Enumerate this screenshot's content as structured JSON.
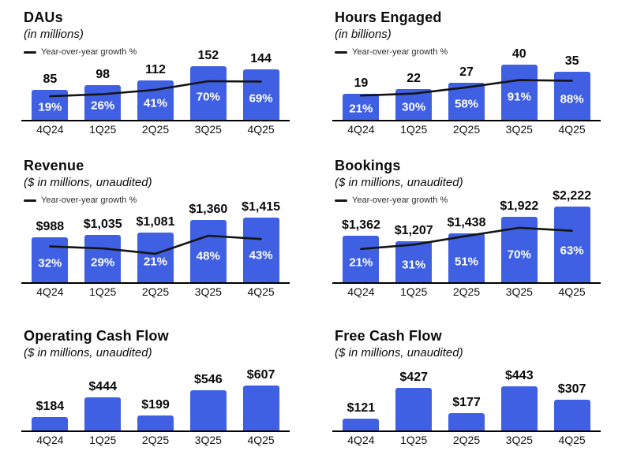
{
  "page": {
    "background": "#ffffff"
  },
  "colors": {
    "bar": "#3F60E2",
    "growth_line": "#151515",
    "growth_label_text": "#ffffff",
    "text": "#0c0c0c"
  },
  "chart_data": [
    {
      "type": "bar",
      "title": "DAUs",
      "subtitle": "(in millions)",
      "legend": "Year-over-year growth %",
      "categories": [
        "4Q24",
        "1Q25",
        "2Q25",
        "3Q25",
        "4Q25"
      ],
      "values": [
        85,
        98,
        112,
        152,
        144
      ],
      "value_labels": [
        "85",
        "98",
        "112",
        "152",
        "144"
      ],
      "series": [
        {
          "name": "Year-over-year growth %",
          "type": "line",
          "values_pct": [
            19,
            26,
            41,
            70,
            69
          ],
          "labels": [
            "19%",
            "26%",
            "41%",
            "70%",
            "69%"
          ]
        }
      ]
    },
    {
      "type": "bar",
      "title": "Hours Engaged",
      "subtitle": "(in billions)",
      "legend": "Year-over-year growth %",
      "categories": [
        "4Q24",
        "1Q25",
        "2Q25",
        "3Q25",
        "4Q25"
      ],
      "values": [
        19,
        22,
        27,
        40,
        35
      ],
      "value_labels": [
        "19",
        "22",
        "27",
        "40",
        "35"
      ],
      "series": [
        {
          "name": "Year-over-year growth %",
          "type": "line",
          "values_pct": [
            21,
            30,
            58,
            91,
            88
          ],
          "labels": [
            "21%",
            "30%",
            "58%",
            "91%",
            "88%"
          ]
        }
      ]
    },
    {
      "type": "bar",
      "title": "Revenue",
      "subtitle": "($ in millions, unaudited)",
      "legend": "Year-over-year growth %",
      "categories": [
        "4Q24",
        "1Q25",
        "2Q25",
        "3Q25",
        "4Q25"
      ],
      "values": [
        988,
        1035,
        1081,
        1360,
        1415
      ],
      "value_labels": [
        "$988",
        "$1,035",
        "$1,081",
        "$1,360",
        "$1,415"
      ],
      "series": [
        {
          "name": "Year-over-year growth %",
          "type": "line",
          "values_pct": [
            32,
            29,
            21,
            48,
            43
          ],
          "labels": [
            "32%",
            "29%",
            "21%",
            "48%",
            "43%"
          ]
        }
      ]
    },
    {
      "type": "bar",
      "title": "Bookings",
      "subtitle": "($ in millions, unaudited)",
      "legend": "Year-over-year growth %",
      "categories": [
        "4Q24",
        "1Q25",
        "2Q25",
        "3Q25",
        "4Q25"
      ],
      "values": [
        1362,
        1207,
        1438,
        1922,
        2222
      ],
      "value_labels": [
        "$1,362",
        "$1,207",
        "$1,438",
        "$1,922",
        "$2,222"
      ],
      "series": [
        {
          "name": "Year-over-year growth %",
          "type": "line",
          "values_pct": [
            21,
            31,
            51,
            70,
            63
          ],
          "labels": [
            "21%",
            "31%",
            "51%",
            "70%",
            "63%"
          ]
        }
      ]
    },
    {
      "type": "bar",
      "title": "Operating Cash Flow",
      "subtitle": "($ in millions, unaudited)",
      "legend": null,
      "categories": [
        "4Q24",
        "1Q25",
        "2Q25",
        "3Q25",
        "4Q25"
      ],
      "values": [
        184,
        444,
        199,
        546,
        607
      ],
      "value_labels": [
        "$184",
        "$444",
        "$199",
        "$546",
        "$607"
      ],
      "series": []
    },
    {
      "type": "bar",
      "title": "Free Cash Flow",
      "subtitle": "($ in millions, unaudited)",
      "legend": null,
      "categories": [
        "4Q24",
        "1Q25",
        "2Q25",
        "3Q25",
        "4Q25"
      ],
      "values": [
        121,
        427,
        177,
        443,
        307
      ],
      "value_labels": [
        "$121",
        "$427",
        "$177",
        "$443",
        "$307"
      ],
      "series": []
    }
  ]
}
